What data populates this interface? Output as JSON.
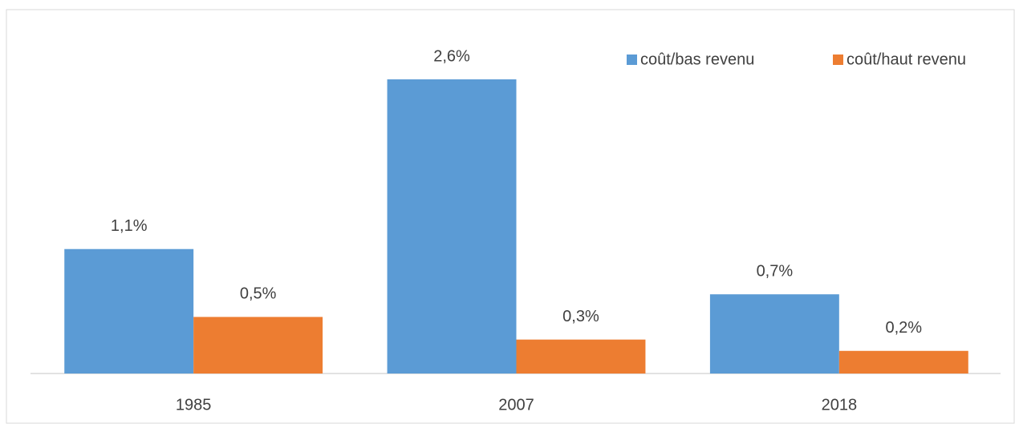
{
  "chart_data": {
    "type": "bar",
    "categories": [
      "1985",
      "2007",
      "2018"
    ],
    "series": [
      {
        "name": "coût/bas revenu",
        "color": "#5b9bd5",
        "values": [
          1.1,
          2.6,
          0.7
        ],
        "value_labels": [
          "1,1%",
          "2,6%",
          "0,7%"
        ]
      },
      {
        "name": "coût/haut revenu",
        "color": "#ed7d31",
        "values": [
          0.5,
          0.3,
          0.2
        ],
        "value_labels": [
          "0,5%",
          "0,3%",
          "0,2%"
        ]
      }
    ],
    "legend": "top-right"
  }
}
